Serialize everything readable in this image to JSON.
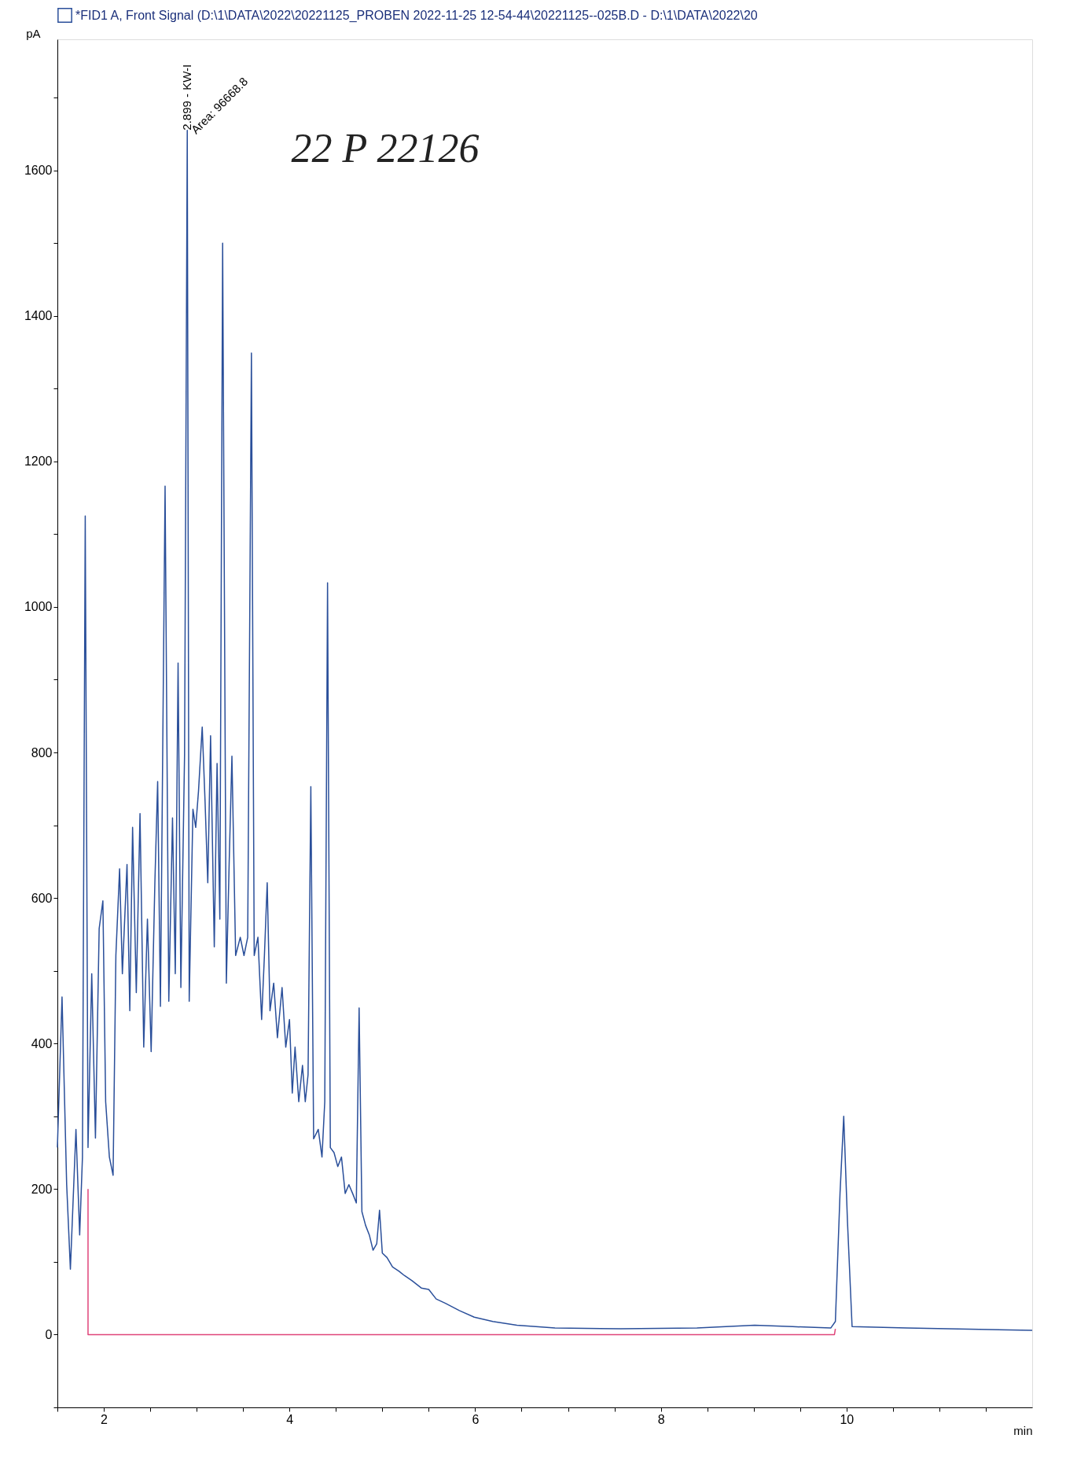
{
  "chart_data": {
    "type": "line",
    "xlabel": "min",
    "ylabel": "pA",
    "xlim": [
      1.5,
      12.0
    ],
    "ylim": [
      -100,
      1780
    ],
    "xticks": [
      {
        "value": 1.5,
        "label": null
      },
      2,
      {
        "value": 2.5,
        "label": null
      },
      {
        "value": 3,
        "label": null
      },
      {
        "value": 3.5,
        "label": null
      },
      4,
      {
        "value": 4.5,
        "label": null
      },
      {
        "value": 5,
        "label": null
      },
      {
        "value": 5.5,
        "label": null
      },
      6,
      {
        "value": 6.5,
        "label": null
      },
      {
        "value": 7,
        "label": null
      },
      {
        "value": 7.5,
        "label": null
      },
      8,
      {
        "value": 8.5,
        "label": null
      },
      {
        "value": 9,
        "label": null
      },
      {
        "value": 9.5,
        "label": null
      },
      10,
      {
        "value": 10.5,
        "label": null
      },
      {
        "value": 11,
        "label": null
      },
      {
        "value": 11.5,
        "label": null
      }
    ],
    "yticks": [
      {
        "value": -100,
        "label": null
      },
      0,
      {
        "value": 100,
        "label": null
      },
      200,
      {
        "value": 300,
        "label": null
      },
      400,
      {
        "value": 500,
        "label": null
      },
      600,
      {
        "value": 700,
        "label": null
      },
      800,
      {
        "value": 900,
        "label": null
      },
      1000,
      {
        "value": 1100,
        "label": null
      },
      1200,
      {
        "value": 1300,
        "label": null
      },
      1400,
      {
        "value": 1500,
        "label": null
      },
      1600,
      {
        "value": 1700,
        "label": null
      }
    ],
    "grid": false,
    "legend": "top",
    "marker": "none",
    "line_style": "solid",
    "series": [
      {
        "name": "*FID1 A, Front Signal (D:\\1\\DATA\\2022\\20221125_PROBEN 2022-11-25 12-54-44\\20221125--025B.D - D:\\1\\DATA\\2022\\20",
        "color": "#2a4f9a",
        "x": [
          1.5,
          1.55,
          1.6,
          1.64,
          1.7,
          1.74,
          1.77,
          1.8,
          1.83,
          1.87,
          1.91,
          1.95,
          1.99,
          2.02,
          2.06,
          2.1,
          2.13,
          2.17,
          2.2,
          2.25,
          2.28,
          2.31,
          2.35,
          2.39,
          2.43,
          2.47,
          2.51,
          2.55,
          2.58,
          2.61,
          2.66,
          2.7,
          2.74,
          2.77,
          2.8,
          2.83,
          2.87,
          2.899,
          2.92,
          2.96,
          2.99,
          3.02,
          3.06,
          3.09,
          3.12,
          3.15,
          3.19,
          3.22,
          3.25,
          3.28,
          3.32,
          3.35,
          3.38,
          3.42,
          3.47,
          3.51,
          3.55,
          3.59,
          3.62,
          3.66,
          3.7,
          3.73,
          3.76,
          3.79,
          3.83,
          3.87,
          3.92,
          3.96,
          4.0,
          4.03,
          4.06,
          4.1,
          4.14,
          4.17,
          4.2,
          4.23,
          4.26,
          4.31,
          4.35,
          4.38,
          4.41,
          4.44,
          4.48,
          4.52,
          4.56,
          4.6,
          4.64,
          4.68,
          4.72,
          4.75,
          4.78,
          4.82,
          4.86,
          4.9,
          4.94,
          4.97,
          5.0,
          5.05,
          5.11,
          5.18,
          5.24,
          5.32,
          5.42,
          5.5,
          5.58,
          5.68,
          5.83,
          5.99,
          6.19,
          6.45,
          6.86,
          7.57,
          8.39,
          9.01,
          9.42,
          9.83,
          9.88,
          9.93,
          9.97,
          10.01,
          10.06,
          10.65,
          12.0
        ],
        "values": [
          257,
          464,
          206,
          90,
          282,
          137,
          244,
          1125,
          257,
          496,
          270,
          558,
          596,
          320,
          244,
          219,
          521,
          640,
          496,
          646,
          445,
          697,
          470,
          716,
          395,
          571,
          389,
          621,
          760,
          451,
          1166,
          458,
          710,
          496,
          923,
          477,
          798,
          1655,
          458,
          722,
          697,
          747,
          835,
          735,
          621,
          823,
          533,
          785,
          571,
          1500,
          483,
          646,
          795,
          521,
          546,
          521,
          546,
          1349,
          521,
          546,
          433,
          521,
          621,
          445,
          483,
          408,
          477,
          395,
          433,
          332,
          395,
          320,
          370,
          320,
          357,
          753,
          269,
          282,
          244,
          320,
          1033,
          257,
          250,
          231,
          244,
          194,
          206,
          194,
          181,
          449,
          169,
          150,
          137,
          116,
          125,
          171,
          112,
          106,
          93,
          87,
          81,
          74,
          64,
          62,
          49,
          43,
          33,
          24,
          18,
          13,
          9,
          8,
          9,
          13,
          11,
          9,
          18,
          194,
          300,
          156,
          11,
          9,
          6
        ]
      },
      {
        "color": "#e0457a",
        "x": [
          1.83,
          1.83,
          9.87,
          9.88
        ],
        "values": [
          200,
          0,
          0,
          8
        ]
      }
    ],
    "annotations": [
      {
        "text": "2.899 - KW-I",
        "x": 2.899,
        "y": 1655
      },
      {
        "text": "Area: 96668.8",
        "x": 2.899,
        "y": 1655
      },
      "22 P 22126"
    ]
  }
}
